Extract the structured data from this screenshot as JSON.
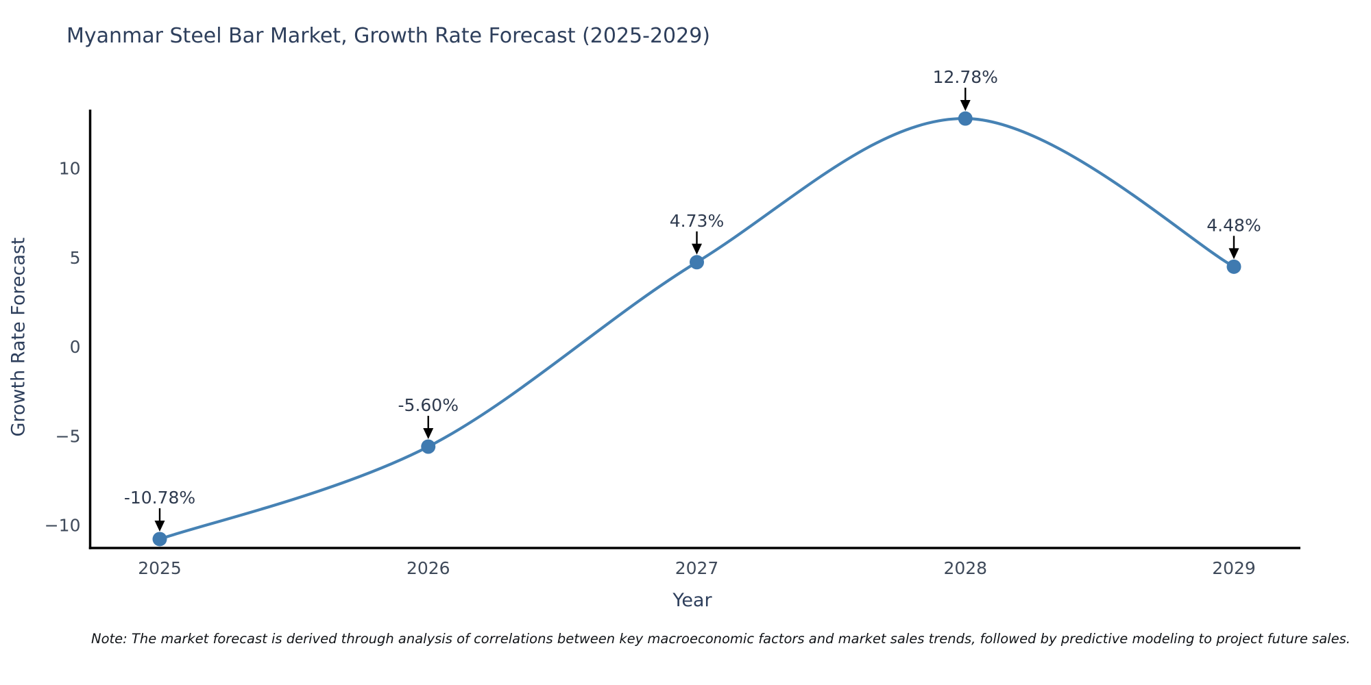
{
  "title": "Myanmar Steel Bar Market, Growth Rate Forecast (2025-2029)",
  "note": "Note: The market forecast is derived through analysis of correlations between key macroeconomic factors and market sales trends, followed by predictive modeling to project future sales.",
  "chart_data": {
    "type": "line",
    "title": "Myanmar Steel Bar Market, Growth Rate Forecast (2025-2029)",
    "xlabel": "Year",
    "ylabel": "Growth Rate Forecast",
    "x": [
      2025,
      2026,
      2027,
      2028,
      2029
    ],
    "categories": [
      "2025",
      "2026",
      "2027",
      "2028",
      "2029"
    ],
    "values": [
      -10.78,
      -5.6,
      4.73,
      12.78,
      4.48
    ],
    "point_labels": [
      "-10.78%",
      "-5.60%",
      "4.73%",
      "12.78%",
      "4.48%"
    ],
    "yticks": [
      {
        "value": 10,
        "label": "10"
      },
      {
        "value": 5,
        "label": "5"
      },
      {
        "value": 0,
        "label": "0"
      },
      {
        "value": -5,
        "label": "−5"
      },
      {
        "value": -10,
        "label": "−10"
      }
    ],
    "ylim": [
      -11.28,
      13.28
    ],
    "grid": false,
    "legend": "none",
    "smooth": true,
    "colors": {
      "line": "#4682b4",
      "marker": "#3f7ab0",
      "axis": "#000000",
      "arrow": "#000000",
      "tick_text": "#3f4a5a",
      "label_text": "#2e3f5c",
      "annotation_text": "#2e3a4e"
    }
  }
}
